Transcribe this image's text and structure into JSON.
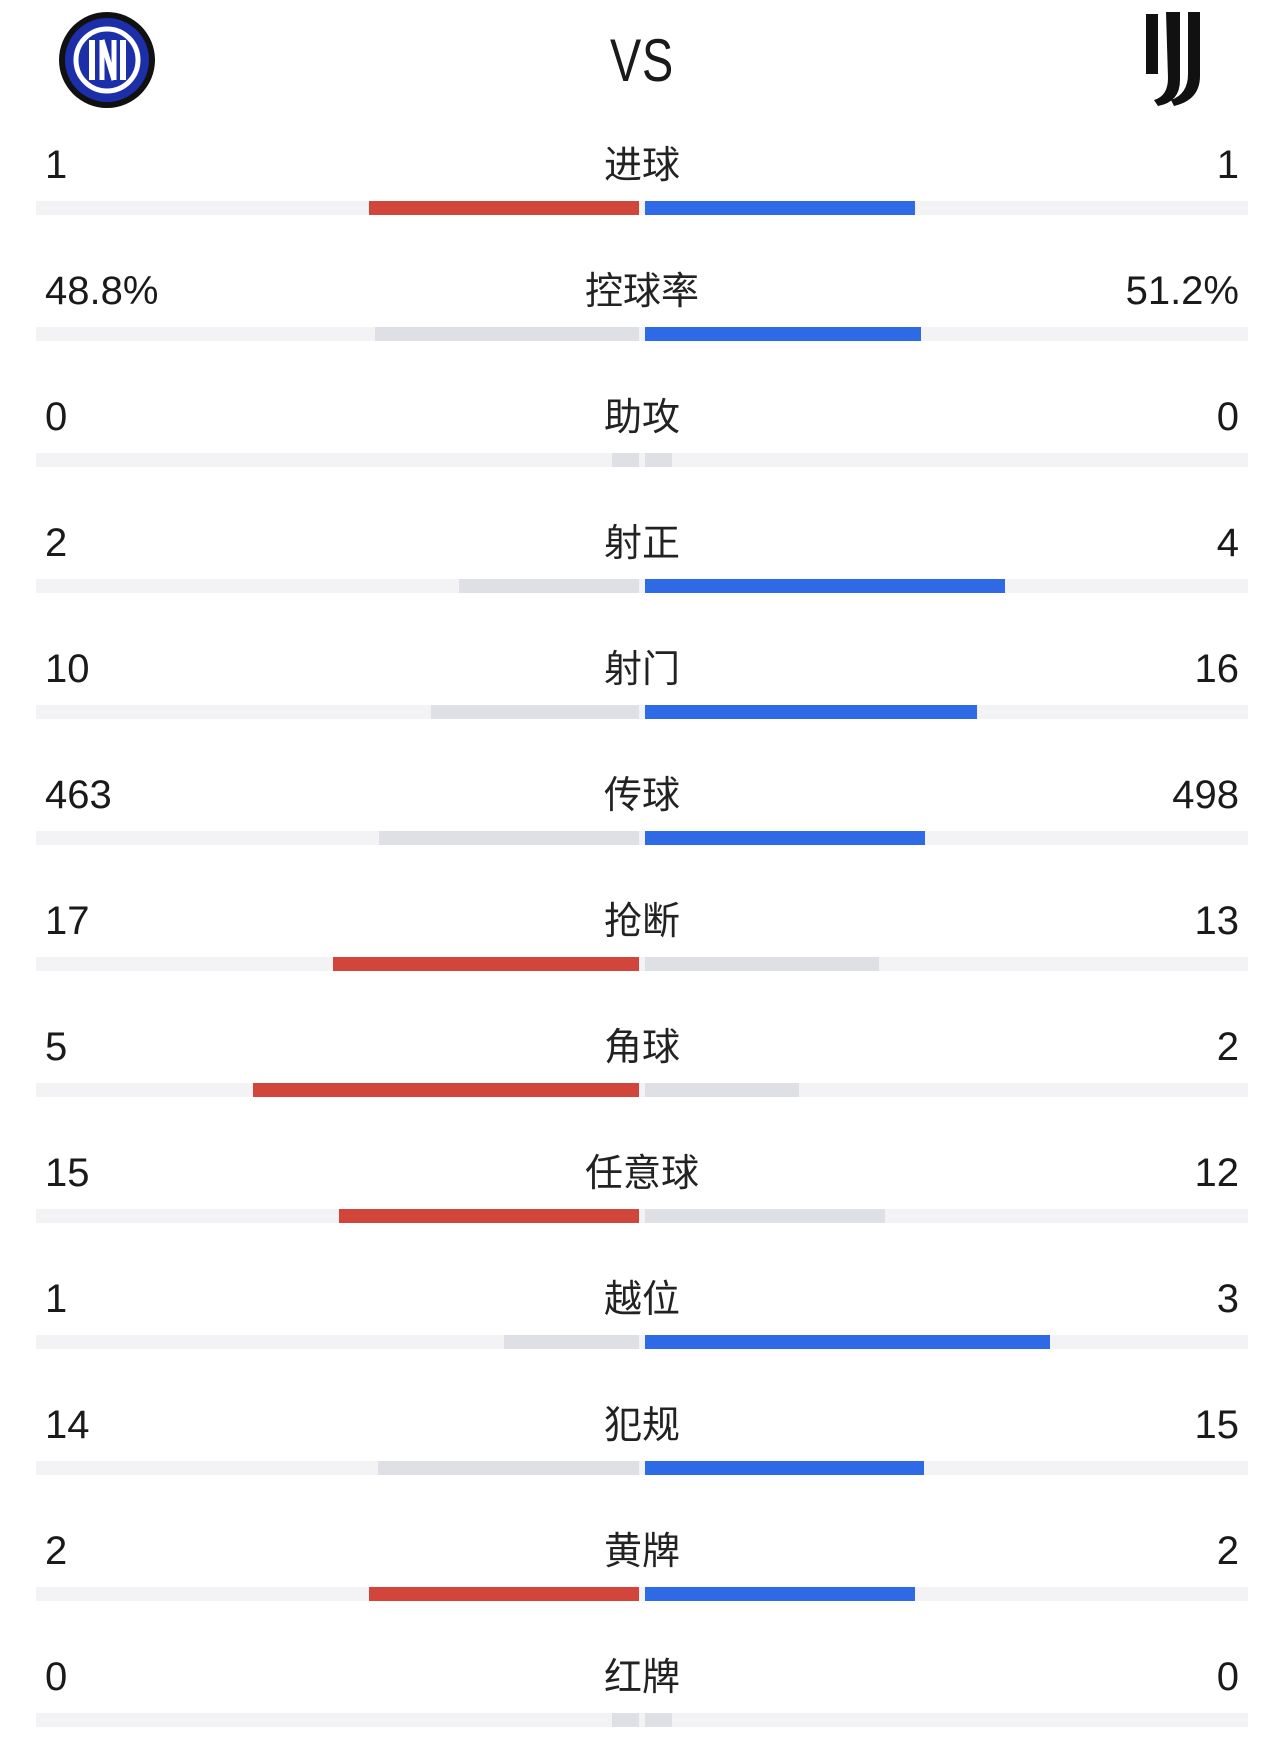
{
  "header": {
    "vs": "VS",
    "home_logo": "inter-milan-crest-icon",
    "away_logo": "juventus-crest-icon"
  },
  "colors": {
    "home_leader": "#d2453a",
    "away_leader": "#2f6ae6",
    "trailing": "#dfe0e6",
    "track": "#f3f3f5"
  },
  "stats": [
    {
      "label": "进球",
      "home": "1",
      "away": "1",
      "home_bar": 0.5,
      "away_bar": 0.5
    },
    {
      "label": "控球率",
      "home": "48.8%",
      "away": "51.2%",
      "home_bar": 0.488,
      "away_bar": 0.512
    },
    {
      "label": "助攻",
      "home": "0",
      "away": "0",
      "home_bar": 0.05,
      "away_bar": 0.05
    },
    {
      "label": "射正",
      "home": "2",
      "away": "4",
      "home_bar": 0.333,
      "away_bar": 0.667
    },
    {
      "label": "射门",
      "home": "10",
      "away": "16",
      "home_bar": 0.385,
      "away_bar": 0.615
    },
    {
      "label": "传球",
      "home": "463",
      "away": "498",
      "home_bar": 0.482,
      "away_bar": 0.518
    },
    {
      "label": "抢断",
      "home": "17",
      "away": "13",
      "home_bar": 0.567,
      "away_bar": 0.433
    },
    {
      "label": "角球",
      "home": "5",
      "away": "2",
      "home_bar": 0.714,
      "away_bar": 0.286
    },
    {
      "label": "任意球",
      "home": "15",
      "away": "12",
      "home_bar": 0.556,
      "away_bar": 0.444
    },
    {
      "label": "越位",
      "home": "1",
      "away": "3",
      "home_bar": 0.25,
      "away_bar": 0.75
    },
    {
      "label": "犯规",
      "home": "14",
      "away": "15",
      "home_bar": 0.483,
      "away_bar": 0.517
    },
    {
      "label": "黄牌",
      "home": "2",
      "away": "2",
      "home_bar": 0.5,
      "away_bar": 0.5
    },
    {
      "label": "红牌",
      "home": "0",
      "away": "0",
      "home_bar": 0.05,
      "away_bar": 0.05
    }
  ]
}
